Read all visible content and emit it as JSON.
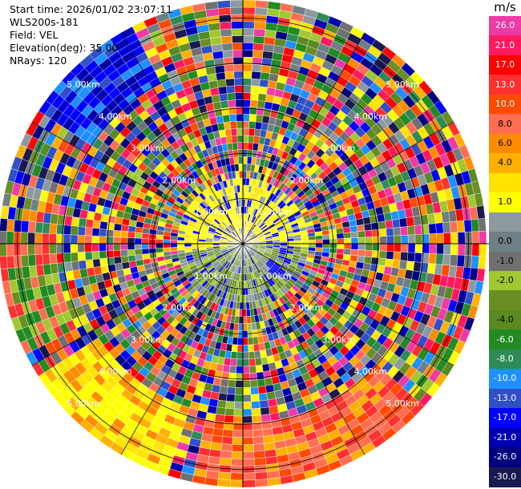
{
  "info": {
    "start_time": "Start time: 2026/01/02 23:07:11",
    "instrument": "WLS200s-181",
    "field": "Field: VEL",
    "elevation": "Elevation(deg): 35.00",
    "nrays": "NRays: 120"
  },
  "colorbar": {
    "unit": "m/s",
    "levels": [
      {
        "label": "26.0",
        "color": "#ee3aa6"
      },
      {
        "label": "21.0",
        "color": "#ff1a60"
      },
      {
        "label": "17.0",
        "color": "#ff0000"
      },
      {
        "label": "13.0",
        "color": "#ff3030"
      },
      {
        "label": "10.0",
        "color": "#ff4a00"
      },
      {
        "label": "8.0",
        "color": "#ff6e52"
      },
      {
        "label": "6.0",
        "color": "#ff8c00"
      },
      {
        "label": "4.0",
        "color": "#ffb000"
      },
      {
        "label": "",
        "color": "#ffe400"
      },
      {
        "label": "1.0",
        "color": "#ffff00"
      },
      {
        "label": "",
        "color": "#8c9aa0"
      },
      {
        "label": "0.0",
        "color": "#6f7f86"
      },
      {
        "label": "-1.0",
        "color": "#707070"
      },
      {
        "label": "-2.0",
        "color": "#a0c830"
      },
      {
        "label": "",
        "color": "#6b8e23"
      },
      {
        "label": "-4.0",
        "color": "#5a8a20"
      },
      {
        "label": "-6.0",
        "color": "#228b22"
      },
      {
        "label": "-8.0",
        "color": "#2e8b57"
      },
      {
        "label": "-10.0",
        "color": "#1e90ff"
      },
      {
        "label": "-13.0",
        "color": "#3050c8"
      },
      {
        "label": "-17.0",
        "color": "#0000ff"
      },
      {
        "label": "-21.0",
        "color": "#0000b0"
      },
      {
        "label": "-26.0",
        "color": "#000080"
      },
      {
        "label": "-30.0",
        "color": "#1a1a50"
      }
    ]
  },
  "chart_data": {
    "type": "heatmap",
    "projection": "ppi-polar",
    "field": "VEL",
    "units": "m/s",
    "nrays": 120,
    "range_rings_km": [
      1,
      2,
      3,
      4,
      5
    ],
    "range_ring_labels": [
      "1.00km",
      "2.00km",
      "3.00km",
      "4.00km",
      "5.00km"
    ],
    "vmin": -30.0,
    "vmax": 26.0,
    "grid": true
  }
}
